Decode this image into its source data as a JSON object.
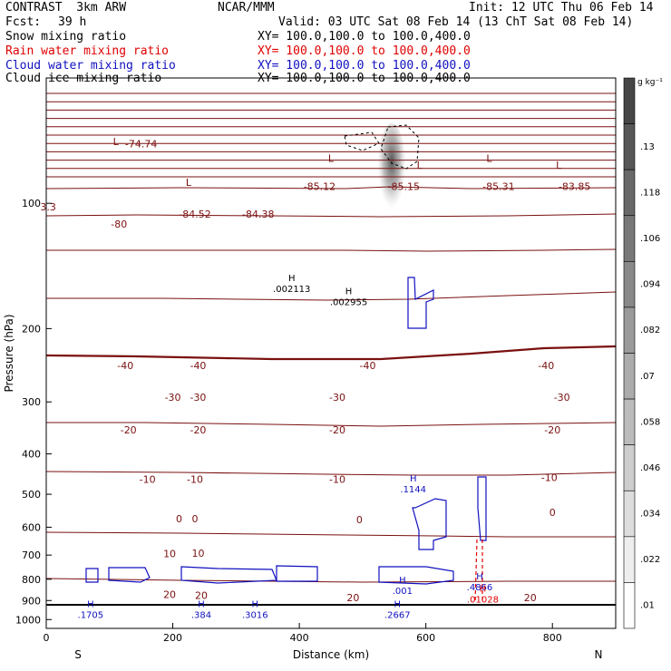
{
  "header": {
    "model": "CONTRAST  3km ARW",
    "org": "NCAR/MMM",
    "init": "Init: 12 UTC Thu 06 Feb 14",
    "fcst_label": "Fcst:",
    "fcst_value": "39 h",
    "valid": "Valid: 03 UTC Sat 08 Feb 14 (13 ChT Sat 08 Feb 14)"
  },
  "fields": [
    {
      "name": "Snow mixing ratio",
      "xy": "XY= 100.0,100.0 to 100.0,400.0",
      "color": "#000000"
    },
    {
      "name": "Rain water mixing ratio",
      "xy": "XY= 100.0,100.0 to 100.0,400.0",
      "color": "#e00000"
    },
    {
      "name": "Cloud water mixing ratio",
      "xy": "XY= 100.0,100.0 to 100.0,400.0",
      "color": "#1010c0"
    },
    {
      "name": "Cloud ice mixing ratio",
      "xy": "XY= 100.0,100.0 to 100.0,400.0",
      "color": "#000000"
    }
  ],
  "colorbar": {
    "unit": "g kg⁻¹",
    "labels": [
      ".13",
      ".118",
      ".106",
      ".094",
      ".082",
      ".07",
      ".058",
      ".046",
      ".034",
      ".022",
      ".01"
    ]
  },
  "chart_data": {
    "type": "contour",
    "xlabel": "Distance (km)",
    "ylabel": "Pressure (hPa)",
    "xlim": [
      0,
      900
    ],
    "ylim": [
      1050,
      50
    ],
    "y_scale": "log",
    "x_ticks": [
      "0",
      "200",
      "400",
      "600",
      "800"
    ],
    "x_tick_values": [
      0,
      200,
      400,
      600,
      800
    ],
    "y_ticks": [
      "100",
      "200",
      "300",
      "400",
      "500",
      "600",
      "700",
      "800",
      "900",
      "1000"
    ],
    "y_tick_values": [
      100,
      200,
      300,
      400,
      500,
      600,
      700,
      800,
      900,
      1000
    ],
    "x_end_labels": {
      "left": "S",
      "right": "N"
    },
    "temperature_labels": [
      {
        "text": "-74.74",
        "x": 150,
        "p": 72
      },
      {
        "text": "3.3",
        "x": 3,
        "p": 102
      },
      {
        "text": "-80",
        "x": 115,
        "p": 112
      },
      {
        "text": "-84.52",
        "x": 235,
        "p": 106
      },
      {
        "text": "-84.38",
        "x": 335,
        "p": 106
      },
      {
        "text": "-85.12",
        "x": 432,
        "p": 91
      },
      {
        "text": "-85.15",
        "x": 565,
        "p": 91
      },
      {
        "text": "-85.31",
        "x": 715,
        "p": 91
      },
      {
        "text": "-83.85",
        "x": 835,
        "p": 91
      },
      {
        "text": "-40",
        "x": 125,
        "p": 245
      },
      {
        "text": "-40",
        "x": 240,
        "p": 245
      },
      {
        "text": "-40",
        "x": 508,
        "p": 245
      },
      {
        "text": "-40",
        "x": 790,
        "p": 245
      },
      {
        "text": "-30",
        "x": 200,
        "p": 292
      },
      {
        "text": "-30",
        "x": 240,
        "p": 292
      },
      {
        "text": "-30",
        "x": 460,
        "p": 292
      },
      {
        "text": "-30",
        "x": 815,
        "p": 292
      },
      {
        "text": "-20",
        "x": 130,
        "p": 350
      },
      {
        "text": "-20",
        "x": 240,
        "p": 350
      },
      {
        "text": "-20",
        "x": 460,
        "p": 350
      },
      {
        "text": "-20",
        "x": 800,
        "p": 350
      },
      {
        "text": "-10",
        "x": 160,
        "p": 460
      },
      {
        "text": "-10",
        "x": 235,
        "p": 460
      },
      {
        "text": "-10",
        "x": 460,
        "p": 460
      },
      {
        "text": "-10",
        "x": 795,
        "p": 455
      },
      {
        "text": "0",
        "x": 210,
        "p": 573
      },
      {
        "text": "0",
        "x": 235,
        "p": 573
      },
      {
        "text": "0",
        "x": 495,
        "p": 575
      },
      {
        "text": "0",
        "x": 800,
        "p": 553
      },
      {
        "text": "10",
        "x": 195,
        "p": 695
      },
      {
        "text": "10",
        "x": 240,
        "p": 693
      },
      {
        "text": "20",
        "x": 195,
        "p": 870
      },
      {
        "text": "20",
        "x": 245,
        "p": 874
      },
      {
        "text": "20",
        "x": 485,
        "p": 885
      },
      {
        "text": "20",
        "x": 765,
        "p": 885
      }
    ],
    "low_markers": [
      {
        "text": "L",
        "x": 110,
        "p": 71
      },
      {
        "text": "L",
        "x": 225,
        "p": 89
      },
      {
        "text": "L",
        "x": 450,
        "p": 78
      },
      {
        "text": "L",
        "x": 590,
        "p": 81
      },
      {
        "text": "L",
        "x": 700,
        "p": 78
      },
      {
        "text": "L",
        "x": 810,
        "p": 81
      }
    ],
    "maxima": [
      {
        "marker": "H",
        "value": ".002113",
        "x": 388,
        "p": 160,
        "color": "#000000"
      },
      {
        "marker": "H",
        "value": ".002955",
        "x": 478,
        "p": 172,
        "color": "#000000"
      },
      {
        "marker": "H",
        "value": ".1144",
        "x": 580,
        "p": 485,
        "color": "#1010c0"
      },
      {
        "marker": "H",
        "value": ".001",
        "x": 563,
        "p": 850,
        "color": "#1010c0"
      },
      {
        "marker": "H",
        "value": ".4866",
        "x": 685,
        "p": 833,
        "color": "#1010c0"
      },
      {
        "marker": "H",
        "value": ".01028",
        "x": 690,
        "p": 893,
        "color": "#e00000"
      },
      {
        "marker": "H",
        "value": ".1705",
        "x": 70,
        "p": 972,
        "color": "#1010c0"
      },
      {
        "marker": "H",
        "value": ".384",
        "x": 245,
        "p": 972,
        "color": "#1010c0"
      },
      {
        "marker": "H",
        "value": ".3016",
        "x": 330,
        "p": 972,
        "color": "#1010c0"
      },
      {
        "marker": "H",
        "value": ".2667",
        "x": 555,
        "p": 972,
        "color": "#1010c0"
      }
    ]
  }
}
